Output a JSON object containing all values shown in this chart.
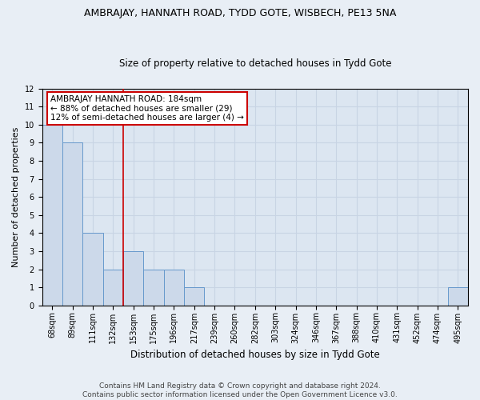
{
  "title": "AMBRAJAY, HANNATH ROAD, TYDD GOTE, WISBECH, PE13 5NA",
  "subtitle": "Size of property relative to detached houses in Tydd Gote",
  "xlabel": "Distribution of detached houses by size in Tydd Gote",
  "ylabel": "Number of detached properties",
  "categories": [
    "68sqm",
    "89sqm",
    "111sqm",
    "132sqm",
    "153sqm",
    "175sqm",
    "196sqm",
    "217sqm",
    "239sqm",
    "260sqm",
    "282sqm",
    "303sqm",
    "324sqm",
    "346sqm",
    "367sqm",
    "388sqm",
    "410sqm",
    "431sqm",
    "452sqm",
    "474sqm",
    "495sqm"
  ],
  "values": [
    10,
    9,
    4,
    2,
    3,
    2,
    2,
    1,
    0,
    0,
    0,
    0,
    0,
    0,
    0,
    0,
    0,
    0,
    0,
    0,
    1
  ],
  "bar_color": "#ccd9ea",
  "bar_edge_color": "#6699cc",
  "ylim": [
    0,
    12
  ],
  "yticks": [
    0,
    1,
    2,
    3,
    4,
    5,
    6,
    7,
    8,
    9,
    10,
    11,
    12
  ],
  "red_line_x": 3.5,
  "annotation_text": "AMBRAJAY HANNATH ROAD: 184sqm\n← 88% of detached houses are smaller (29)\n12% of semi-detached houses are larger (4) →",
  "annotation_box_color": "#ffffff",
  "annotation_box_edge": "#cc0000",
  "footer": "Contains HM Land Registry data © Crown copyright and database right 2024.\nContains public sector information licensed under the Open Government Licence v3.0.",
  "background_color": "#e8eef5",
  "plot_bg_color": "#dce6f1",
  "grid_color": "#c8d4e4",
  "title_fontsize": 9,
  "subtitle_fontsize": 8.5,
  "xlabel_fontsize": 8.5,
  "ylabel_fontsize": 8,
  "tick_fontsize": 7,
  "annotation_fontsize": 7.5,
  "footer_fontsize": 6.5
}
